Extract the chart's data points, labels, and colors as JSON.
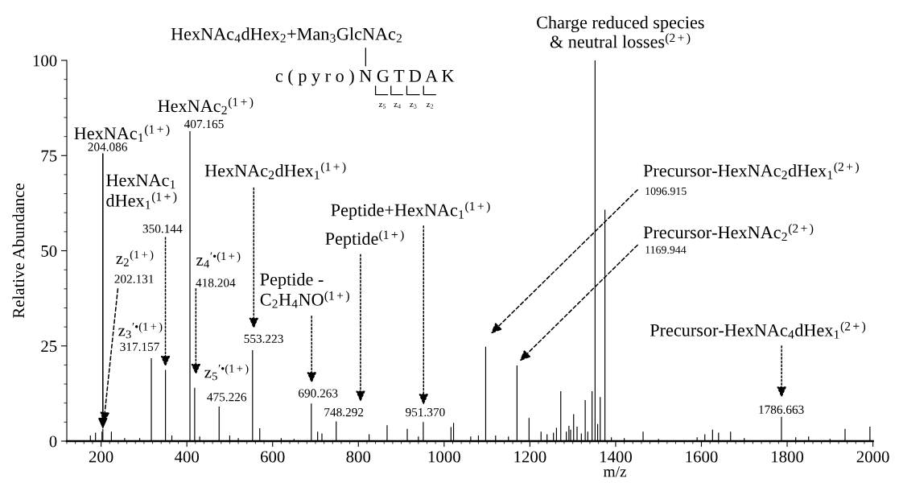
{
  "chart_data": {
    "type": "bar",
    "xlabel": "m/z",
    "ylabel": "Relative Abundance",
    "color": "#000000",
    "x": [
      175,
      187,
      202.131,
      204.086,
      224,
      255,
      290,
      317.157,
      350.144,
      365,
      407.165,
      418.204,
      430,
      475.226,
      500,
      520,
      553.223,
      570,
      620,
      650,
      690.263,
      705,
      715,
      748.292,
      825,
      867,
      914,
      940,
      951.37,
      1016,
      1022,
      1062,
      1080,
      1096.915,
      1120,
      1150,
      1169.944,
      1198,
      1226,
      1240,
      1255,
      1262,
      1272,
      1285,
      1291,
      1295,
      1302,
      1310,
      1320,
      1329,
      1335,
      1345,
      1352,
      1358,
      1364,
      1375,
      1390,
      1420,
      1464,
      1500,
      1590,
      1608,
      1626,
      1640,
      1668,
      1700,
      1786.663,
      1820,
      1850,
      1900,
      1935,
      1993
    ],
    "values": [
      1.5,
      2.2,
      2.5,
      3.2,
      2.5,
      0.8,
      0.8,
      21.8,
      18.7,
      1.5,
      81.4,
      14,
      1.2,
      9.1,
      1.5,
      0.8,
      23.9,
      3.4,
      0.8,
      0.6,
      9.9,
      2.5,
      2,
      5.2,
      1.8,
      4.2,
      3.2,
      1.2,
      5.0,
      3.7,
      4.8,
      1.2,
      1.5,
      24.8,
      1.5,
      1.2,
      19.9,
      6.1,
      2.5,
      1.8,
      2.2,
      3.5,
      13.1,
      2.5,
      4.0,
      3.0,
      7.1,
      3.8,
      2.0,
      10.8,
      2.5,
      13.1,
      100,
      4.5,
      11.6,
      60.8,
      1.0,
      0.8,
      2.5,
      0.6,
      1.0,
      1.8,
      3.0,
      2.2,
      2.5,
      0.8,
      6.4,
      1.0,
      1.2,
      0.6,
      3.2,
      3.8
    ],
    "xlim": [
      120,
      2000
    ],
    "xticks": [
      200,
      400,
      600,
      800,
      1000,
      1200,
      1400,
      1600,
      1800,
      2000
    ],
    "ylim": [
      0,
      100
    ],
    "yticks": [
      0,
      25,
      50,
      75,
      100
    ],
    "grid": false,
    "legend": false,
    "annotations": [
      "HexNAc$_{4}$dHex$_{2}$+Man$_{3}$GlcNAc$_{2}$",
      "c ( p y r o ) N G T D A K",
      "z$_{5}$",
      "z$_{4}$",
      "z$_{3}$",
      "z$_{2}$",
      {
        "text": "HexNAc$_{1}$$^{(1+)}$",
        "x": 204.086,
        "y": 3.2
      },
      "204.086",
      "HexNAc$_{2}$$^{(1+)}$",
      "407.165",
      "HexNAc$_{1}$\ndHex$_{1}$$^{(1+)}$",
      "350.144",
      "HexNAc$_{2}$dHex$_{1}$$^{(1+)}$",
      "553.223",
      "Peptide+HexNAc$_{1}$$^{(1+)}$",
      "951.370",
      "Peptide$^{(1+)}$",
      "748.292",
      "Peptide -\nC$_{2}$H$_{4}$NO$^{(1+)}$",
      "690.263",
      "z$_{2}$$^{(1+)}$",
      "202.131",
      "z$_{3}$$^{′•(1+)}$",
      "317.157",
      "z$_{4}$$^{′•(1+)}$",
      "418.204",
      "z$_{5}$$^{′•(1+)}$",
      "475.226",
      "Charge reduced species\n& neutral losses$^{(2+)}$",
      "Precursor-HexNAc$_{2}$dHex$_{1}$$^{(2+)}$",
      "1096.915",
      "Precursor-HexNAc$_{2}$$^{(2+)}$",
      "1169.944",
      "Precursor-HexNAc$_{4}$dHex$_{1}$$^{(2+)}$",
      "1786.663"
    ]
  }
}
